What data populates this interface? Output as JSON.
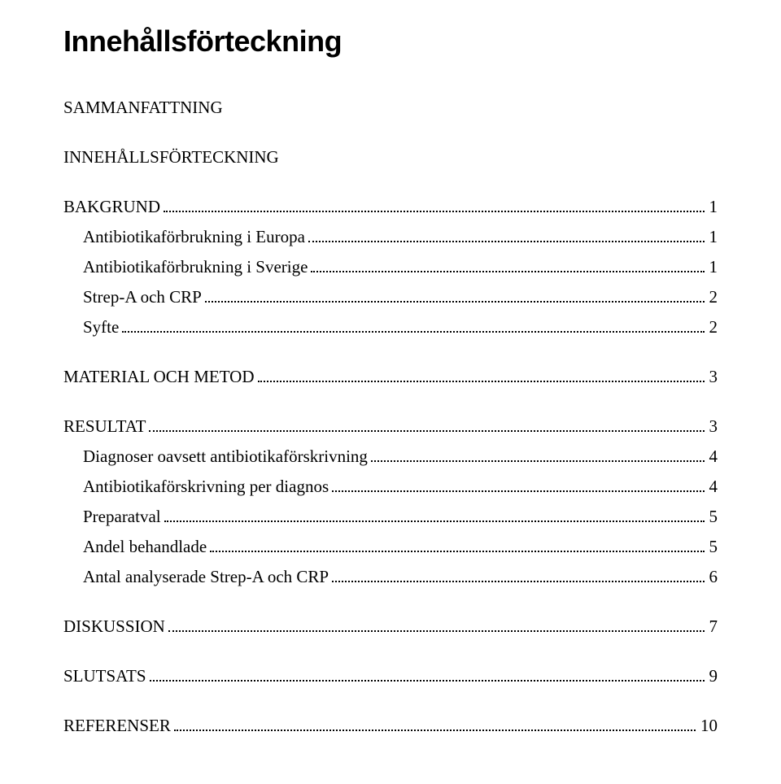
{
  "title": "Innehållsförteckning",
  "toc": {
    "sammanfattning": {
      "label": "SAMMANFATTNING"
    },
    "innehallsforteckning": {
      "label": "INNEHÅLLSFÖRTECKNING"
    },
    "bakgrund": {
      "label": "BAKGRUND",
      "page": "1"
    },
    "bakgrund_sub1": {
      "label": "Antibiotikaförbrukning i Europa",
      "page": "1"
    },
    "bakgrund_sub2": {
      "label": "Antibiotikaförbrukning i Sverige",
      "page": "1"
    },
    "bakgrund_sub3": {
      "label": "Strep-A och CRP",
      "page": "2"
    },
    "bakgrund_sub4": {
      "label": "Syfte",
      "page": "2"
    },
    "material": {
      "label": "MATERIAL OCH METOD",
      "page": "3"
    },
    "resultat": {
      "label": "RESULTAT",
      "page": "3"
    },
    "resultat_sub1": {
      "label": "Diagnoser oavsett antibiotikaförskrivning",
      "page": "4"
    },
    "resultat_sub2": {
      "label": "Antibiotikaförskrivning per diagnos",
      "page": "4"
    },
    "resultat_sub3": {
      "label": "Preparatval",
      "page": "5"
    },
    "resultat_sub4": {
      "label": "Andel behandlade",
      "page": "5"
    },
    "resultat_sub5": {
      "label": "Antal analyserade Strep-A och CRP",
      "page": "6"
    },
    "diskussion": {
      "label": "DISKUSSION",
      "page": "7"
    },
    "slutsats": {
      "label": "SLUTSATS",
      "page": "9"
    },
    "referenser": {
      "label": "REFERENSER",
      "page": "10"
    }
  }
}
